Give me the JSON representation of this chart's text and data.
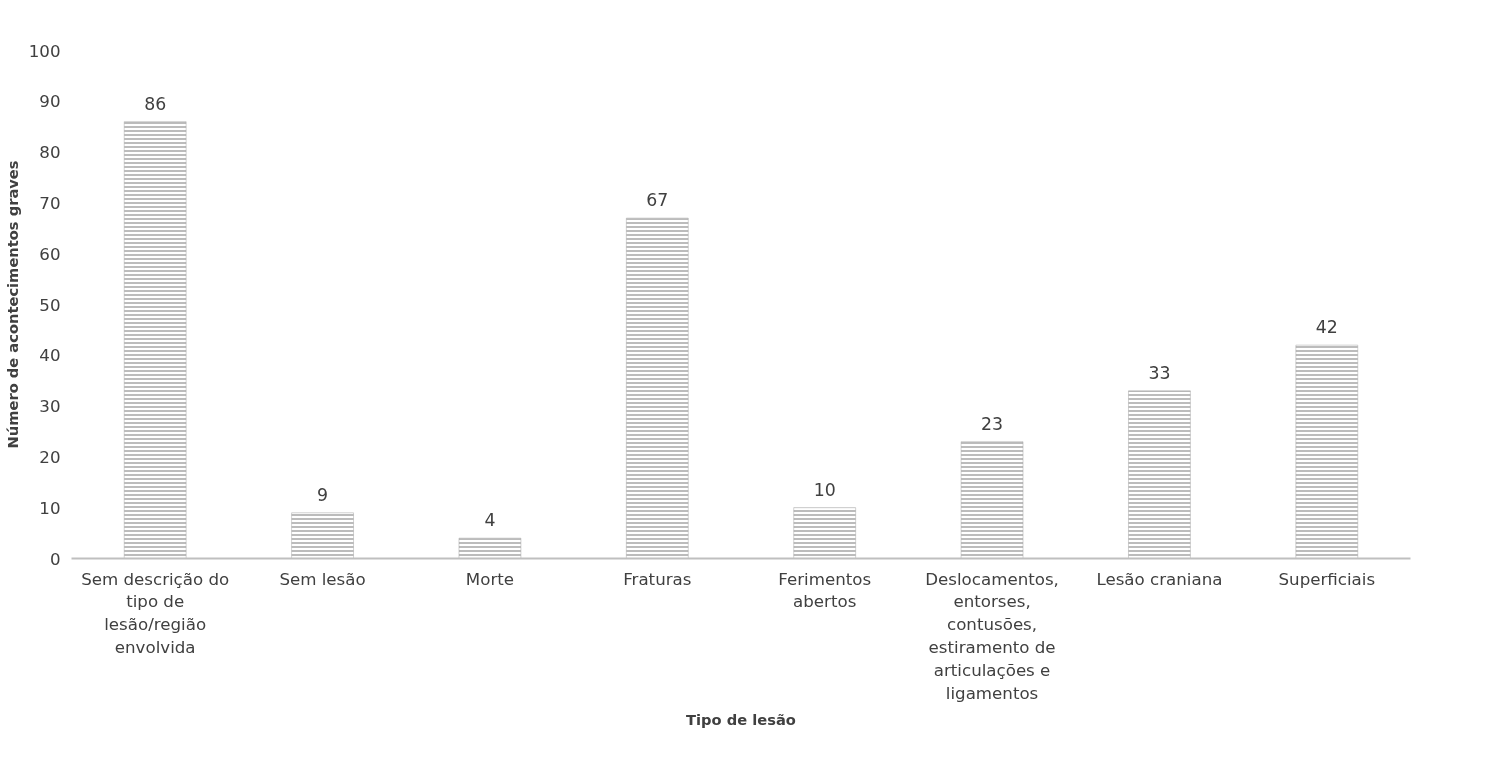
{
  "chart_data": {
    "type": "bar",
    "xlabel": "Tipo de lesão",
    "ylabel": "Número de acontecimentos graves",
    "categories": [
      "Sem descrição do tipo de lesão/região envolvida",
      "Sem lesão",
      "Morte",
      "Fraturas",
      "Ferimentos abertos",
      "Deslocamentos, entorses, contusões, estiramento de articulações e ligamentos",
      "Lesão craniana",
      "Superficiais"
    ],
    "values": [
      86,
      9,
      4,
      67,
      10,
      23,
      33,
      42
    ],
    "color": "#a5a5a5",
    "ylim": [
      0,
      100
    ],
    "yticks": [
      0,
      10,
      20,
      30,
      40,
      50,
      60,
      70,
      80,
      90,
      100
    ],
    "data_labels": true,
    "grid": false
  }
}
